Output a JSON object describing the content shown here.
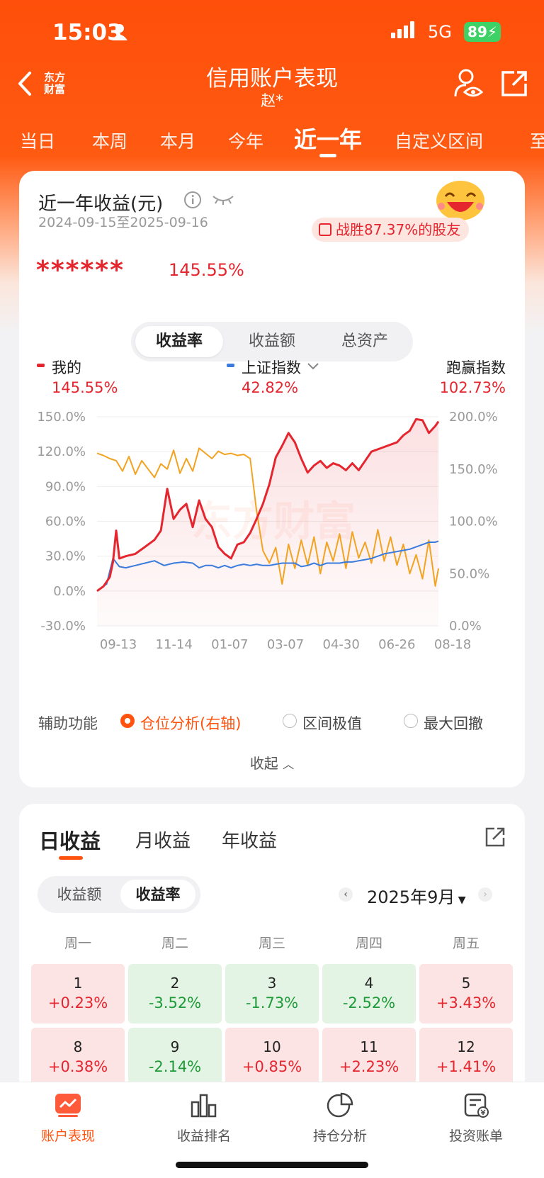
{
  "status_bar": {
    "time": "15:03",
    "network": "5G",
    "battery": "89"
  },
  "header": {
    "logo_line1": "东方",
    "logo_line2": "财富",
    "title": "信用账户表现",
    "subtitle": "赵*"
  },
  "period_tabs": [
    {
      "label": "当日"
    },
    {
      "label": "本周"
    },
    {
      "label": "本月"
    },
    {
      "label": "今年"
    },
    {
      "label": "近一年",
      "active": true
    },
    {
      "label": "自定义区间"
    },
    {
      "label": "至"
    }
  ],
  "summary": {
    "title": "近一年收益(元)",
    "range": "2024-09-15至2025-09-16",
    "badge": "战胜87.37%的股友",
    "hidden_amount": "******",
    "return_pct": "145.55%"
  },
  "metric_toggle": {
    "options": [
      "收益率",
      "收益额",
      "总资产"
    ],
    "selected": "收益率"
  },
  "legend": {
    "mine_label": "我的",
    "mine_value": "145.55%",
    "index_label": "上证指数",
    "index_value": "42.82%",
    "beat_label": "跑赢指数",
    "beat_value": "102.73%"
  },
  "chart_data": {
    "type": "line",
    "x_ticks": [
      "09-13",
      "11-14",
      "01-07",
      "03-07",
      "04-30",
      "06-26",
      "08-18"
    ],
    "y_left_ticks": [
      "150.0%",
      "120.0%",
      "90.0%",
      "60.0%",
      "30.0%",
      "0.0%",
      "-30.0%"
    ],
    "y_left_range": [
      -30,
      150
    ],
    "y_right_ticks": [
      "200.0%",
      "150.0%",
      "100.0%",
      "50.0%",
      "0.0%"
    ],
    "y_right_range": [
      0,
      200
    ],
    "watermark": "东方财富",
    "series": [
      {
        "name": "我的",
        "axis": "left",
        "color": "#e5262f",
        "points": [
          [
            0,
            0
          ],
          [
            2,
            4
          ],
          [
            4,
            12
          ],
          [
            5,
            25
          ],
          [
            6,
            52
          ],
          [
            7,
            28
          ],
          [
            9,
            30
          ],
          [
            12,
            32
          ],
          [
            15,
            38
          ],
          [
            18,
            44
          ],
          [
            20,
            52
          ],
          [
            22,
            88
          ],
          [
            24,
            62
          ],
          [
            26,
            70
          ],
          [
            28,
            75
          ],
          [
            30,
            55
          ],
          [
            32,
            78
          ],
          [
            34,
            62
          ],
          [
            36,
            55
          ],
          [
            38,
            38
          ],
          [
            40,
            32
          ],
          [
            42,
            28
          ],
          [
            44,
            40
          ],
          [
            46,
            42
          ],
          [
            48,
            50
          ],
          [
            50,
            62
          ],
          [
            52,
            75
          ],
          [
            54,
            92
          ],
          [
            56,
            115
          ],
          [
            58,
            125
          ],
          [
            60,
            136
          ],
          [
            62,
            128
          ],
          [
            64,
            114
          ],
          [
            66,
            102
          ],
          [
            68,
            108
          ],
          [
            70,
            112
          ],
          [
            72,
            106
          ],
          [
            74,
            110
          ],
          [
            76,
            108
          ],
          [
            78,
            104
          ],
          [
            80,
            110
          ],
          [
            82,
            104
          ],
          [
            84,
            112
          ],
          [
            86,
            120
          ],
          [
            88,
            122
          ],
          [
            90,
            124
          ],
          [
            92,
            126
          ],
          [
            94,
            128
          ],
          [
            96,
            134
          ],
          [
            98,
            138
          ],
          [
            100,
            148
          ],
          [
            102,
            147
          ],
          [
            104,
            136
          ],
          [
            106,
            142
          ],
          [
            107,
            146
          ]
        ]
      },
      {
        "name": "上证指数",
        "axis": "left",
        "color": "#3a7bdd",
        "points": [
          [
            0,
            0
          ],
          [
            3,
            6
          ],
          [
            5,
            28
          ],
          [
            7,
            21
          ],
          [
            9,
            20
          ],
          [
            12,
            22
          ],
          [
            15,
            24
          ],
          [
            18,
            26
          ],
          [
            21,
            22
          ],
          [
            24,
            24
          ],
          [
            27,
            25
          ],
          [
            30,
            24
          ],
          [
            32,
            20
          ],
          [
            34,
            22
          ],
          [
            36,
            22
          ],
          [
            38,
            20
          ],
          [
            40,
            22
          ],
          [
            42,
            20
          ],
          [
            44,
            22
          ],
          [
            46,
            23
          ],
          [
            48,
            22
          ],
          [
            50,
            23
          ],
          [
            52,
            22
          ],
          [
            54,
            22
          ],
          [
            56,
            23
          ],
          [
            58,
            24
          ],
          [
            60,
            24
          ],
          [
            62,
            24
          ],
          [
            64,
            21
          ],
          [
            66,
            22
          ],
          [
            68,
            24
          ],
          [
            70,
            22
          ],
          [
            72,
            24
          ],
          [
            74,
            24
          ],
          [
            76,
            24
          ],
          [
            78,
            25
          ],
          [
            80,
            25
          ],
          [
            82,
            26
          ],
          [
            84,
            27
          ],
          [
            86,
            28
          ],
          [
            88,
            30
          ],
          [
            90,
            32
          ],
          [
            92,
            33
          ],
          [
            94,
            34
          ],
          [
            96,
            35
          ],
          [
            98,
            36
          ],
          [
            100,
            38
          ],
          [
            102,
            40
          ],
          [
            104,
            42
          ],
          [
            106,
            42
          ],
          [
            107,
            43
          ]
        ]
      },
      {
        "name": "仓位",
        "axis": "right",
        "color": "#f2a322",
        "points": [
          [
            0,
            165
          ],
          [
            2,
            163
          ],
          [
            4,
            160
          ],
          [
            6,
            158
          ],
          [
            8,
            148
          ],
          [
            10,
            162
          ],
          [
            12,
            145
          ],
          [
            14,
            158
          ],
          [
            16,
            150
          ],
          [
            18,
            142
          ],
          [
            20,
            155
          ],
          [
            22,
            150
          ],
          [
            24,
            168
          ],
          [
            26,
            146
          ],
          [
            28,
            160
          ],
          [
            30,
            148
          ],
          [
            32,
            170
          ],
          [
            34,
            165
          ],
          [
            36,
            160
          ],
          [
            38,
            167
          ],
          [
            40,
            164
          ],
          [
            42,
            165
          ],
          [
            44,
            163
          ],
          [
            46,
            164
          ],
          [
            48,
            160
          ],
          [
            50,
            110
          ],
          [
            52,
            72
          ],
          [
            54,
            60
          ],
          [
            56,
            75
          ],
          [
            58,
            40
          ],
          [
            60,
            78
          ],
          [
            62,
            55
          ],
          [
            64,
            82
          ],
          [
            66,
            58
          ],
          [
            68,
            85
          ],
          [
            70,
            50
          ],
          [
            72,
            80
          ],
          [
            74,
            62
          ],
          [
            76,
            88
          ],
          [
            78,
            55
          ],
          [
            80,
            90
          ],
          [
            82,
            65
          ],
          [
            84,
            80
          ],
          [
            86,
            60
          ],
          [
            88,
            92
          ],
          [
            90,
            62
          ],
          [
            92,
            85
          ],
          [
            94,
            58
          ],
          [
            96,
            78
          ],
          [
            98,
            50
          ],
          [
            100,
            68
          ],
          [
            102,
            45
          ],
          [
            104,
            82
          ],
          [
            106,
            38
          ],
          [
            107,
            55
          ]
        ]
      }
    ]
  },
  "aux": {
    "label": "辅助功能",
    "options": [
      "仓位分析(右轴)",
      "区间极值",
      "最大回撤"
    ],
    "selected": "仓位分析(右轴)",
    "collapse": "收起"
  },
  "income_tabs": {
    "options": [
      "日收益",
      "月收益",
      "年收益"
    ],
    "selected": "日收益"
  },
  "income_toggle": {
    "options": [
      "收益额",
      "收益率"
    ],
    "selected": "收益率"
  },
  "month": {
    "label": "2025年9月"
  },
  "weekdays": [
    "周一",
    "周二",
    "周三",
    "周四",
    "周五"
  ],
  "calendar": [
    {
      "day": "1",
      "value": "+0.23%",
      "sign": "pos"
    },
    {
      "day": "2",
      "value": "-3.52%",
      "sign": "neg"
    },
    {
      "day": "3",
      "value": "-1.73%",
      "sign": "neg"
    },
    {
      "day": "4",
      "value": "-2.52%",
      "sign": "neg"
    },
    {
      "day": "5",
      "value": "+3.43%",
      "sign": "pos"
    },
    {
      "day": "8",
      "value": "+0.38%",
      "sign": "pos"
    },
    {
      "day": "9",
      "value": "-2.14%",
      "sign": "neg"
    },
    {
      "day": "10",
      "value": "+0.85%",
      "sign": "pos"
    },
    {
      "day": "11",
      "value": "+2.23%",
      "sign": "pos"
    },
    {
      "day": "12",
      "value": "+1.41%",
      "sign": "pos"
    }
  ],
  "bottom_nav": [
    {
      "label": "账户表现",
      "icon": "account-performance-icon",
      "active": true
    },
    {
      "label": "收益排名",
      "icon": "bar-chart-icon"
    },
    {
      "label": "持仓分析",
      "icon": "pie-chart-icon"
    },
    {
      "label": "投资账单",
      "icon": "bill-icon"
    }
  ],
  "colors": {
    "brand": "#ff520e",
    "up": "#e5262f",
    "down": "#1e9b38",
    "index": "#3a7bdd",
    "position": "#f2a322"
  }
}
